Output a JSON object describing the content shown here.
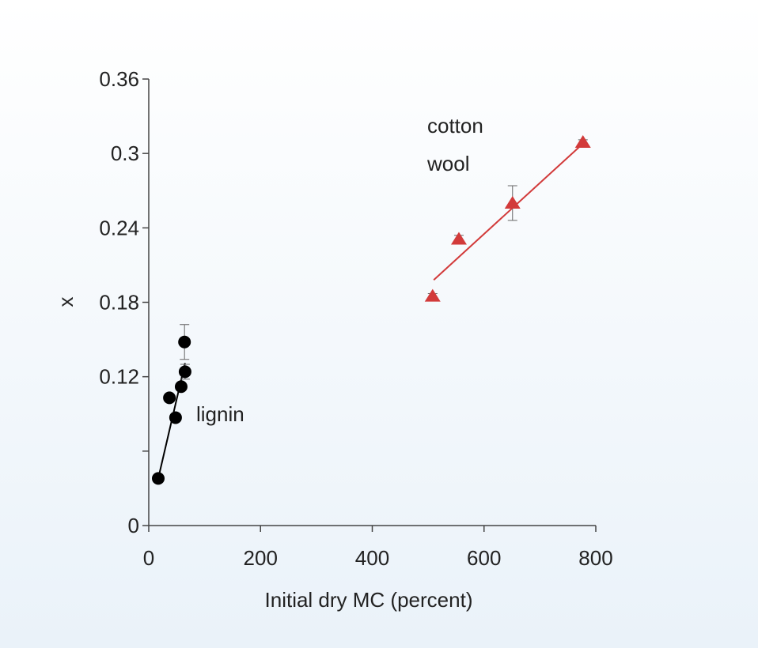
{
  "chart_data": {
    "type": "scatter",
    "x_label": "Initial dry MC (percent)",
    "y_label": "x",
    "xlim": [
      0,
      800
    ],
    "xticks": [
      0,
      200,
      400,
      600,
      800
    ],
    "ylim": [
      0,
      0.36
    ],
    "yticks": [
      0,
      0.12,
      0.18,
      0.24,
      0.3,
      0.36
    ],
    "yticks_unlabeled": [
      0.06
    ],
    "series": [
      {
        "name": "lignin",
        "color": "#000000",
        "marker": "circle",
        "x": [
          17,
          37,
          48,
          58,
          64,
          65
        ],
        "values": [
          0.038,
          0.103,
          0.087,
          0.112,
          0.148,
          0.124
        ],
        "errors": [
          0.003,
          0.003,
          0.003,
          0.003,
          0.014,
          0.006
        ],
        "fit": {
          "x": [
            17,
            65
          ],
          "values": [
            0.038,
            0.131
          ]
        }
      },
      {
        "name": "cotton wool",
        "color": "#d23a3a",
        "marker": "triangle",
        "x": [
          508,
          555,
          651,
          777
        ],
        "values": [
          0.185,
          0.231,
          0.26,
          0.309
        ],
        "errors": [
          0.002,
          0.003,
          0.014,
          0.002
        ],
        "fit": {
          "x": [
            510,
            782
          ],
          "values": [
            0.198,
            0.31
          ]
        }
      }
    ]
  }
}
